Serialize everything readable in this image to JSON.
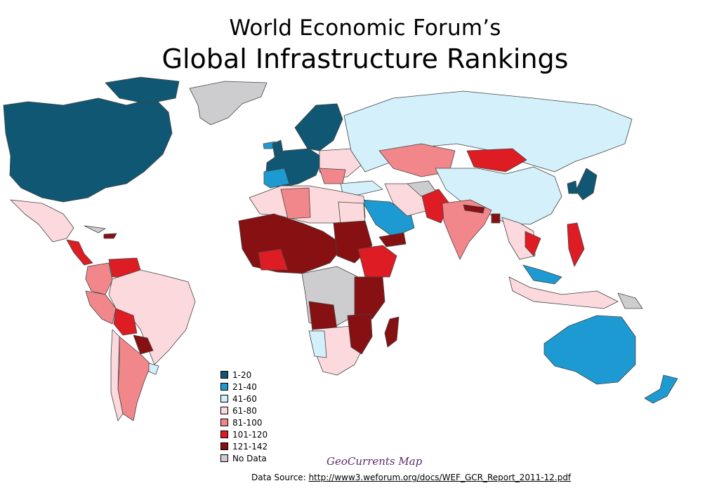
{
  "title_line1": "World Economic Forum’s",
  "title_line2": "Global Infrastructure Rankings",
  "colors": {
    "r1": "#0f5772",
    "r2": "#1e9ad2",
    "r3": "#d3f0fb",
    "r4": "#fcd9dc",
    "r5": "#f2878b",
    "r6": "#de1c24",
    "r7": "#871012",
    "nodata": "#cdcdd0"
  },
  "legend": [
    {
      "label": "1-20",
      "color": "#0f5772"
    },
    {
      "label": "21-40",
      "color": "#1e9ad2"
    },
    {
      "label": "41-60",
      "color": "#d3f0fb"
    },
    {
      "label": "61-80",
      "color": "#fcd9dc"
    },
    {
      "label": "81-100",
      "color": "#f2878b"
    },
    {
      "label": "101-120",
      "color": "#de1c24"
    },
    {
      "label": "121-142",
      "color": "#871012"
    },
    {
      "label": "No Data",
      "color": "#cdcdd0"
    }
  ],
  "credit": "GeoCurrents Map",
  "source_prefix": "Data Source:",
  "source_link": "http://www3.weforum.org/docs/WEF_GCR_Report_2011-12.pdf"
}
